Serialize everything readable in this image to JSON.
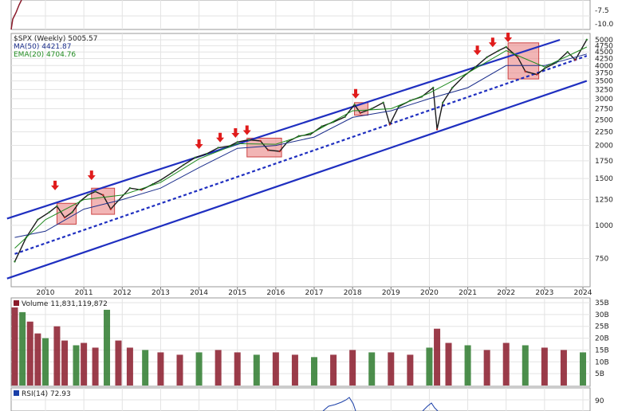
{
  "chart_data": [
    {
      "type": "line",
      "panel": "top-indicator-strip",
      "y_ticks": [
        "-7.5",
        "-10.0"
      ],
      "grid": true
    },
    {
      "type": "candlestick",
      "panel": "price",
      "title": "$SPX (Weekly) 5005.57",
      "legend": [
        {
          "label": "$SPX (Weekly) 5005.57",
          "color": "#222222"
        },
        {
          "label": "MA(50) 4421.87",
          "color": "#1c2f8c"
        },
        {
          "label": "EMA(20) 4704.76",
          "color": "#1f8a1f"
        }
      ],
      "legend_placement": "top-left",
      "y_scale": "log",
      "ylim": [
        620,
        5000
      ],
      "y_ticks": [
        5000,
        4750,
        4500,
        4250,
        4000,
        3750,
        3500,
        3250,
        3000,
        2750,
        2500,
        2250,
        2000,
        1750,
        1500,
        1250,
        1000,
        750
      ],
      "x_ticks": [
        "2010",
        "2011",
        "2012",
        "2013",
        "2014",
        "2015",
        "2016",
        "2017",
        "2018",
        "2019",
        "2020",
        "2021",
        "2022",
        "2023",
        "2024"
      ],
      "grid": true,
      "series": [
        {
          "name": "$SPX (Weekly)",
          "x": [
            2009.2,
            2009.5,
            2009.8,
            2010.1,
            2010.3,
            2010.5,
            2010.7,
            2010.9,
            2011.1,
            2011.3,
            2011.5,
            2011.7,
            2011.9,
            2012.2,
            2012.5,
            2012.8,
            2013.0,
            2013.3,
            2013.6,
            2013.9,
            2014.2,
            2014.5,
            2014.8,
            2015.0,
            2015.3,
            2015.6,
            2015.8,
            2016.1,
            2016.3,
            2016.6,
            2016.9,
            2017.2,
            2017.5,
            2017.8,
            2018.05,
            2018.2,
            2018.5,
            2018.8,
            2018.97,
            2019.2,
            2019.5,
            2019.8,
            2020.1,
            2020.2,
            2020.35,
            2020.6,
            2020.9,
            2021.2,
            2021.5,
            2021.8,
            2022.0,
            2022.3,
            2022.5,
            2022.8,
            2023.0,
            2023.3,
            2023.6,
            2023.8,
            2024.1
          ],
          "values": [
            730,
            900,
            1050,
            1120,
            1180,
            1070,
            1120,
            1230,
            1300,
            1340,
            1300,
            1150,
            1240,
            1380,
            1360,
            1430,
            1480,
            1580,
            1690,
            1800,
            1860,
            1960,
            1990,
            2060,
            2100,
            2080,
            1920,
            1900,
            2060,
            2170,
            2200,
            2360,
            2450,
            2560,
            2850,
            2650,
            2750,
            2900,
            2400,
            2800,
            2950,
            3050,
            3300,
            2300,
            2900,
            3300,
            3650,
            3950,
            4300,
            4550,
            4700,
            4300,
            3800,
            3700,
            3900,
            4100,
            4500,
            4200,
            5005
          ]
        },
        {
          "name": "MA(50)",
          "x": [
            2009.2,
            2010.0,
            2011.0,
            2012.0,
            2013.0,
            2014.0,
            2015.0,
            2016.0,
            2017.0,
            2018.0,
            2019.0,
            2020.0,
            2021.0,
            2022.0,
            2023.0,
            2024.1
          ],
          "values": [
            900,
            950,
            1150,
            1250,
            1380,
            1650,
            1950,
            2000,
            2150,
            2550,
            2700,
            3000,
            3300,
            4000,
            4000,
            4420
          ]
        },
        {
          "name": "EMA(20)",
          "x": [
            2009.2,
            2010.0,
            2011.0,
            2012.0,
            2013.0,
            2014.0,
            2015.0,
            2016.0,
            2017.0,
            2018.0,
            2019.0,
            2020.0,
            2021.0,
            2022.0,
            2023.0,
            2024.1
          ],
          "values": [
            820,
            1050,
            1250,
            1300,
            1450,
            1780,
            2030,
            2020,
            2250,
            2700,
            2750,
            3150,
            3750,
            4550,
            3950,
            4700
          ]
        }
      ],
      "trendlines": [
        {
          "style": "solid",
          "color": "#1f2fc0",
          "points": [
            [
              2009.0,
              1060
            ],
            [
              2023.4,
              5000
            ]
          ]
        },
        {
          "style": "dashed",
          "color": "#1f2fc0",
          "points": [
            [
              2009.2,
              780
            ],
            [
              2024.1,
              4350
            ]
          ]
        },
        {
          "style": "solid",
          "color": "#1f2fc0",
          "points": [
            [
              2009.0,
              630
            ],
            [
              2024.1,
              3500
            ]
          ]
        }
      ],
      "highlight_boxes": [
        {
          "x": [
            2010.3,
            2010.8
          ],
          "y": [
            1010,
            1210
          ]
        },
        {
          "x": [
            2011.2,
            2011.8
          ],
          "y": [
            1100,
            1380
          ]
        },
        {
          "x": [
            2015.25,
            2016.15
          ],
          "y": [
            1810,
            2130
          ]
        },
        {
          "x": [
            2018.05,
            2018.4
          ],
          "y": [
            2600,
            2900
          ]
        },
        {
          "x": [
            2022.05,
            2022.85
          ],
          "y": [
            3560,
            4870
          ]
        }
      ],
      "arrow_markers": [
        {
          "x": 2010.25,
          "y": 1300
        },
        {
          "x": 2011.2,
          "y": 1420
        },
        {
          "x": 2014.0,
          "y": 1860
        },
        {
          "x": 2014.55,
          "y": 1970
        },
        {
          "x": 2014.95,
          "y": 2050
        },
        {
          "x": 2015.25,
          "y": 2100
        },
        {
          "x": 2018.08,
          "y": 2880
        },
        {
          "x": 2021.25,
          "y": 4200
        },
        {
          "x": 2021.65,
          "y": 4500
        },
        {
          "x": 2022.05,
          "y": 4700
        }
      ]
    },
    {
      "type": "bar",
      "panel": "volume",
      "title": "Volume 11,831,119,872",
      "y_ticks": [
        "35B",
        "30B",
        "25B",
        "20B",
        "15B",
        "10B",
        "5B"
      ],
      "ylim": [
        0,
        35
      ],
      "grid": true,
      "x": [
        2009.2,
        2009.4,
        2009.6,
        2009.8,
        2010.0,
        2010.3,
        2010.5,
        2010.8,
        2011.0,
        2011.3,
        2011.6,
        2011.9,
        2012.2,
        2012.6,
        2013.0,
        2013.5,
        2014.0,
        2014.5,
        2015.0,
        2015.5,
        2016.0,
        2016.5,
        2017.0,
        2017.5,
        2018.0,
        2018.5,
        2019.0,
        2019.5,
        2020.0,
        2020.2,
        2020.5,
        2021.0,
        2021.5,
        2022.0,
        2022.5,
        2023.0,
        2023.5,
        2024.0
      ],
      "values": [
        33,
        31,
        27,
        22,
        20,
        25,
        19,
        17,
        18,
        16,
        32,
        19,
        16,
        15,
        14,
        13,
        14,
        15,
        14,
        13,
        14,
        13,
        12,
        13,
        15,
        14,
        14,
        13,
        16,
        24,
        18,
        17,
        15,
        18,
        17,
        16,
        15,
        14
      ]
    },
    {
      "type": "line",
      "panel": "rsi",
      "title": "RSI(14) 72.93",
      "y_ticks": [
        "90"
      ],
      "grid": true
    }
  ]
}
